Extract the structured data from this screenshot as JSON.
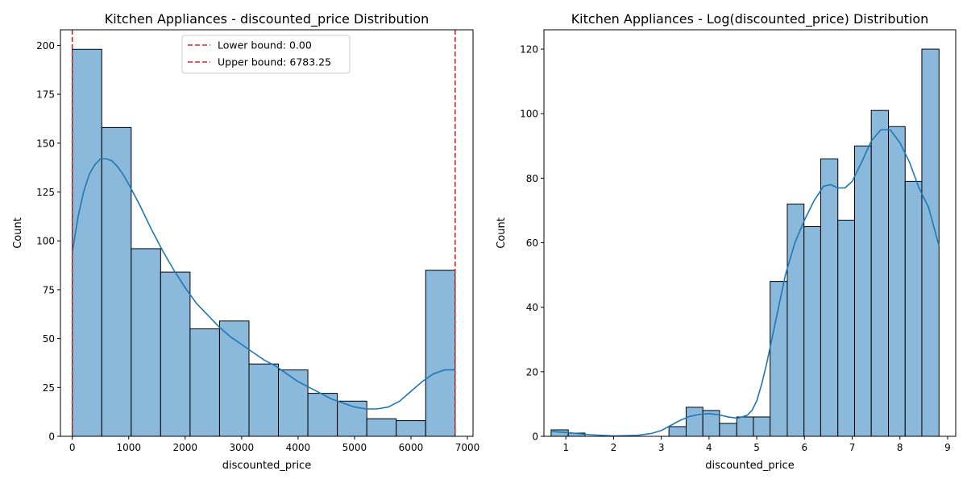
{
  "chart_data": [
    {
      "type": "bar",
      "subtype": "histogram",
      "title": "Kitchen Appliances - discounted_price Distribution",
      "xlabel": "discounted_price",
      "ylabel": "Count",
      "xlim": [
        -210,
        7100
      ],
      "ylim": [
        0,
        208
      ],
      "xticks": [
        0,
        1000,
        2000,
        3000,
        4000,
        5000,
        6000,
        7000
      ],
      "xtick_labels": [
        "0",
        "1000",
        "2000",
        "3000",
        "4000",
        "5000",
        "6000",
        "7000"
      ],
      "yticks": [
        0,
        25,
        50,
        75,
        100,
        125,
        150,
        175,
        200
      ],
      "ytick_labels": [
        "0",
        "25",
        "50",
        "75",
        "100",
        "125",
        "150",
        "175",
        "200"
      ],
      "bins": [
        {
          "x0": 0,
          "x1": 522,
          "count": 198
        },
        {
          "x0": 522,
          "x1": 1044,
          "count": 158
        },
        {
          "x0": 1044,
          "x1": 1565,
          "count": 96
        },
        {
          "x0": 1565,
          "x1": 2087,
          "count": 84
        },
        {
          "x0": 2087,
          "x1": 2609,
          "count": 55
        },
        {
          "x0": 2609,
          "x1": 3131,
          "count": 59
        },
        {
          "x0": 3131,
          "x1": 3652,
          "count": 37
        },
        {
          "x0": 3652,
          "x1": 4174,
          "count": 34
        },
        {
          "x0": 4174,
          "x1": 4696,
          "count": 22
        },
        {
          "x0": 4696,
          "x1": 5218,
          "count": 18
        },
        {
          "x0": 5218,
          "x1": 5740,
          "count": 9
        },
        {
          "x0": 5740,
          "x1": 6261,
          "count": 8
        },
        {
          "x0": 6261,
          "x1": 6783,
          "count": 85
        }
      ],
      "kde": {
        "x": [
          0,
          100,
          200,
          300,
          400,
          500,
          600,
          700,
          800,
          900,
          1000,
          1200,
          1400,
          1600,
          1800,
          2000,
          2200,
          2400,
          2600,
          2800,
          3000,
          3200,
          3400,
          3600,
          3800,
          4000,
          4200,
          4400,
          4600,
          4800,
          5000,
          5200,
          5400,
          5600,
          5800,
          6000,
          6200,
          6400,
          6600,
          6783
        ],
        "y": [
          94,
          112,
          125,
          134,
          139,
          142,
          142,
          141,
          138,
          134,
          129,
          118,
          106,
          95,
          85,
          76,
          68,
          62,
          56,
          51,
          47,
          43,
          39,
          36,
          32,
          28,
          25,
          22,
          19,
          17,
          15,
          14,
          14,
          15,
          18,
          23,
          28,
          32,
          34,
          34
        ]
      },
      "vlines": [
        {
          "x": 0.0,
          "label": "Lower bound: 0.00",
          "color": "#d62728",
          "style": "dashed"
        },
        {
          "x": 6783.25,
          "label": "Upper bound: 6783.25",
          "color": "#d62728",
          "style": "dashed"
        }
      ],
      "legend_position": "top-center",
      "bar_color": "#8bb9dc",
      "kde_color": "#1f77b4",
      "grid": false
    },
    {
      "type": "bar",
      "subtype": "histogram",
      "title": "Kitchen Appliances - Log(discounted_price) Distribution",
      "xlabel": "discounted_price",
      "ylabel": "Count",
      "xlim": [
        0.54,
        9.17
      ],
      "ylim": [
        0,
        126
      ],
      "xticks": [
        1,
        2,
        3,
        4,
        5,
        6,
        7,
        8,
        9
      ],
      "xtick_labels": [
        "1",
        "2",
        "3",
        "4",
        "5",
        "6",
        "7",
        "8",
        "9"
      ],
      "yticks": [
        0,
        20,
        40,
        60,
        80,
        100,
        120
      ],
      "ytick_labels": [
        "0",
        "20",
        "40",
        "60",
        "80",
        "100",
        "120"
      ],
      "bins": [
        {
          "x0": 0.69,
          "x1": 1.05,
          "count": 2
        },
        {
          "x0": 1.05,
          "x1": 1.4,
          "count": 1
        },
        {
          "x0": 1.4,
          "x1": 1.75,
          "count": 0
        },
        {
          "x0": 1.75,
          "x1": 2.11,
          "count": 0
        },
        {
          "x0": 2.11,
          "x1": 2.46,
          "count": 0
        },
        {
          "x0": 2.46,
          "x1": 2.81,
          "count": 0
        },
        {
          "x0": 2.81,
          "x1": 3.16,
          "count": 0
        },
        {
          "x0": 3.16,
          "x1": 3.52,
          "count": 3
        },
        {
          "x0": 3.52,
          "x1": 3.87,
          "count": 9
        },
        {
          "x0": 3.87,
          "x1": 4.22,
          "count": 8
        },
        {
          "x0": 4.22,
          "x1": 4.58,
          "count": 4
        },
        {
          "x0": 4.58,
          "x1": 4.93,
          "count": 6
        },
        {
          "x0": 4.93,
          "x1": 5.28,
          "count": 6
        },
        {
          "x0": 5.28,
          "x1": 5.64,
          "count": 48
        },
        {
          "x0": 5.64,
          "x1": 5.99,
          "count": 72
        },
        {
          "x0": 5.99,
          "x1": 6.34,
          "count": 65
        },
        {
          "x0": 6.34,
          "x1": 6.7,
          "count": 86
        },
        {
          "x0": 6.7,
          "x1": 7.05,
          "count": 67
        },
        {
          "x0": 7.05,
          "x1": 7.4,
          "count": 90
        },
        {
          "x0": 7.4,
          "x1": 7.76,
          "count": 101
        },
        {
          "x0": 7.76,
          "x1": 8.11,
          "count": 96
        },
        {
          "x0": 8.11,
          "x1": 8.46,
          "count": 79
        },
        {
          "x0": 8.46,
          "x1": 8.82,
          "count": 120
        }
      ],
      "kde": {
        "x": [
          0.69,
          1.0,
          1.5,
          2.0,
          2.5,
          2.8,
          3.0,
          3.2,
          3.4,
          3.6,
          3.8,
          4.0,
          4.2,
          4.4,
          4.6,
          4.8,
          4.9,
          5.0,
          5.1,
          5.2,
          5.3,
          5.4,
          5.5,
          5.6,
          5.8,
          6.0,
          6.2,
          6.4,
          6.55,
          6.7,
          6.85,
          7.0,
          7.2,
          7.4,
          7.6,
          7.8,
          8.0,
          8.2,
          8.4,
          8.6,
          8.82
        ],
        "y": [
          1.5,
          1.2,
          0.5,
          0.1,
          0.3,
          0.9,
          1.8,
          3.4,
          5.0,
          6.2,
          6.8,
          7.0,
          6.7,
          6.0,
          5.6,
          6.5,
          8.0,
          11,
          16,
          22,
          29,
          36,
          43,
          50,
          60,
          67,
          73,
          77.5,
          78,
          77,
          77,
          79,
          85,
          91.5,
          95,
          95,
          91,
          85,
          77,
          71,
          59
        ]
      },
      "bar_color": "#8bb9dc",
      "kde_color": "#1f77b4",
      "grid": false
    }
  ]
}
